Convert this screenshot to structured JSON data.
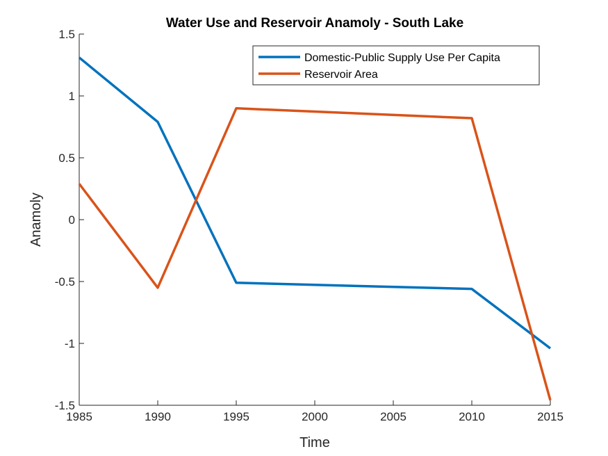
{
  "chart_data": {
    "type": "line",
    "title": "Water Use and Reservoir Anamoly - South Lake",
    "xlabel": "Time",
    "ylabel": "Anamoly",
    "xlim": [
      1985,
      2015
    ],
    "ylim": [
      -1.5,
      1.5
    ],
    "x_ticks": [
      1985,
      1990,
      1995,
      2000,
      2005,
      2010,
      2015
    ],
    "x_tick_labels": [
      "1985",
      "1990",
      "1995",
      "2000",
      "2005",
      "2010",
      "2015"
    ],
    "y_ticks": [
      1.5,
      1,
      0.5,
      0,
      -0.5,
      -1,
      -1.5
    ],
    "y_tick_labels": [
      "1.5",
      "1",
      "0.5",
      "0",
      "-0.5",
      "-1",
      "-1.5"
    ],
    "grid": false,
    "legend_position": "top-right",
    "x": [
      1985,
      1990,
      1995,
      2010,
      2015
    ],
    "series": [
      {
        "name": "Domestic-Public Supply Use Per Capita",
        "color": "#0072BD",
        "values": [
          1.31,
          0.79,
          -0.51,
          -0.56,
          -1.04
        ]
      },
      {
        "name": "Reservoir Area",
        "color": "#D95319",
        "values": [
          0.29,
          -0.55,
          0.9,
          0.82,
          -1.46
        ]
      }
    ]
  }
}
